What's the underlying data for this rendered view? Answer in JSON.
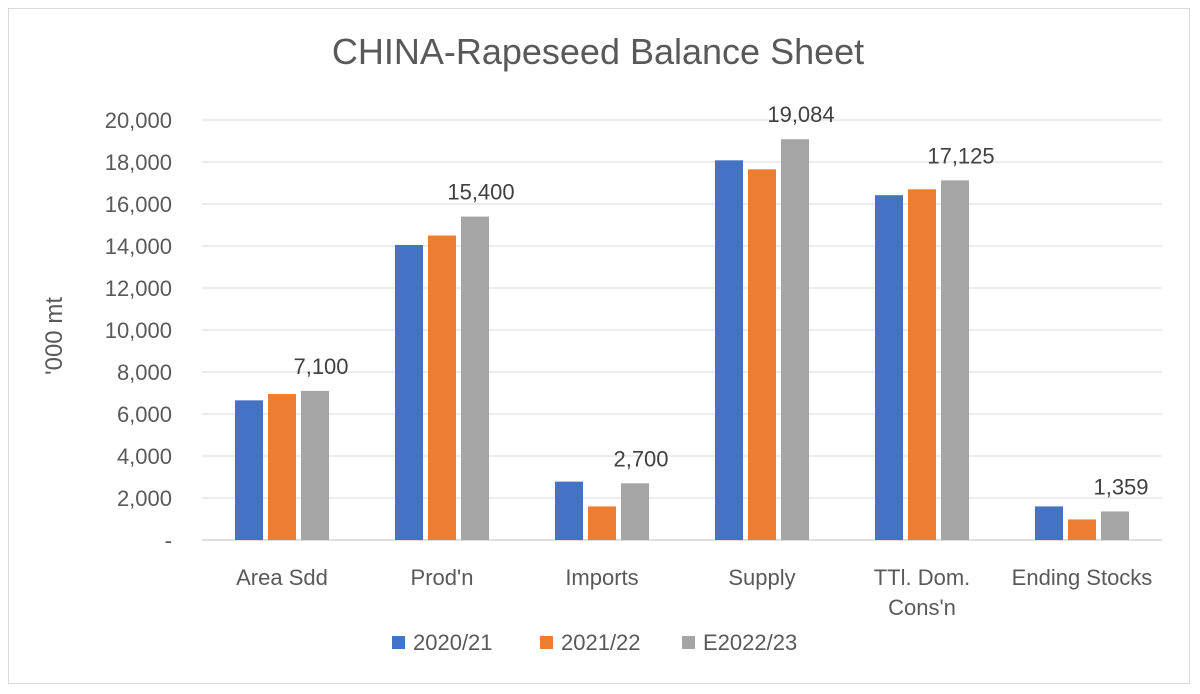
{
  "chart_data": {
    "type": "bar",
    "title": "CHINA-Rapeseed Balance Sheet",
    "ylabel": "'000 mt",
    "xlabel": "",
    "ylim": [
      0,
      20000
    ],
    "yticks": [
      0,
      2000,
      4000,
      6000,
      8000,
      10000,
      12000,
      14000,
      16000,
      18000,
      20000
    ],
    "ytick_labels": [
      "-",
      "2,000",
      "4,000",
      "6,000",
      "8,000",
      "10,000",
      "12,000",
      "14,000",
      "16,000",
      "18,000",
      "20,000"
    ],
    "grid": true,
    "legend_position": "bottom",
    "categories": [
      [
        "Area Sdd"
      ],
      [
        "Prod'n"
      ],
      [
        "Imports"
      ],
      [
        "Supply"
      ],
      [
        "TTl. Dom.",
        "Cons'n"
      ],
      [
        "Ending Stocks"
      ]
    ],
    "series": [
      {
        "name": "2020/21",
        "color": "#4472c4",
        "values": [
          6650,
          14050,
          2780,
          18080,
          16420,
          1600
        ]
      },
      {
        "name": "2021/22",
        "color": "#ed7d31",
        "values": [
          6950,
          14500,
          1600,
          17650,
          16700,
          980
        ]
      },
      {
        "name": "E2022/23",
        "color": "#a5a5a5",
        "values": [
          7100,
          15400,
          2700,
          19084,
          17125,
          1359
        ]
      }
    ],
    "data_labels": [
      {
        "category_index": 0,
        "series_index": 2,
        "text": "7,100"
      },
      {
        "category_index": 1,
        "series_index": 2,
        "text": "15,400"
      },
      {
        "category_index": 2,
        "series_index": 2,
        "text": "2,700"
      },
      {
        "category_index": 3,
        "series_index": 2,
        "text": "19,084"
      },
      {
        "category_index": 4,
        "series_index": 2,
        "text": "17,125"
      },
      {
        "category_index": 5,
        "series_index": 2,
        "text": "1,359"
      }
    ]
  }
}
